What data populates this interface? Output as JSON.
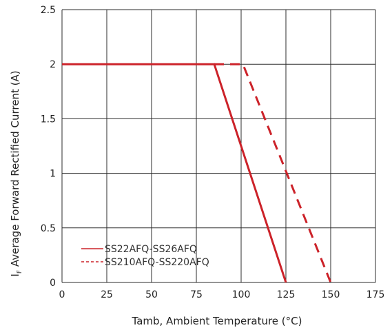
{
  "colors": {
    "series": "#cc2229",
    "grid": "#2b2b2b",
    "text": "#222222"
  },
  "chart_data": {
    "type": "line",
    "title": "",
    "xlabel": "Tamb, Ambient Temperature (°C)",
    "ylabel": "IF Average Forward Rectified Current (A)",
    "xlim": [
      0,
      175
    ],
    "ylim": [
      0,
      2.5
    ],
    "x_ticks": [
      "0",
      "25",
      "50",
      "75",
      "100",
      "125",
      "150",
      "175"
    ],
    "y_ticks": [
      "0",
      "0.5",
      "1",
      "1.5",
      "2",
      "2.5"
    ],
    "grid": true,
    "legend_position": "bottom-left",
    "series": [
      {
        "name": "SS22AFQ-SS26AFQ",
        "style": "solid",
        "x": [
          0,
          85,
          125
        ],
        "y": [
          2,
          2,
          0
        ]
      },
      {
        "name": "SS210AFQ-SS220AFQ",
        "style": "dashed",
        "x": [
          85,
          101,
          150
        ],
        "y": [
          2,
          2,
          0
        ]
      }
    ]
  }
}
